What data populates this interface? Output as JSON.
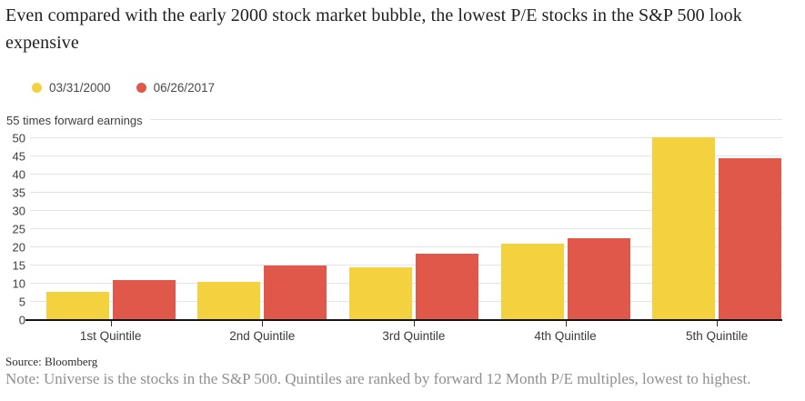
{
  "title": "Even compared with the early 2000 stock market bubble, the lowest P/E stocks in the S&P 500 look expensive",
  "legend": [
    {
      "label": "03/31/2000",
      "color": "#F4D13F"
    },
    {
      "label": "06/26/2017",
      "color": "#E0584A"
    }
  ],
  "axis_unit_label": "55 times forward earnings",
  "source": "Source: Bloomberg",
  "note": "Note: Universe is the stocks in the S&P 500. Quintiles are ranked by forward 12 Month P/E multiples, lowest to highest.",
  "chart_data": {
    "type": "bar",
    "title": "Even compared with the early 2000 stock market bubble, the lowest P/E stocks in the S&P 500 look expensive",
    "categories": [
      "1st Quintile",
      "2nd Quintile",
      "3rd Quintile",
      "4th Quintile",
      "5th Quintile"
    ],
    "series": [
      {
        "name": "03/31/2000",
        "color": "#F4D13F",
        "values": [
          7.7,
          10.6,
          14.5,
          20.9,
          50.2
        ]
      },
      {
        "name": "06/26/2017",
        "color": "#E0584A",
        "values": [
          11.0,
          14.9,
          18.2,
          22.5,
          44.5
        ]
      }
    ],
    "xlabel": "",
    "ylabel": "times forward earnings",
    "ylim": [
      0,
      55
    ],
    "yticks": [
      0,
      5,
      10,
      15,
      20,
      25,
      30,
      35,
      40,
      45,
      50
    ],
    "ytop_label": "55 times forward earnings",
    "grid": true,
    "legend_position": "top-left",
    "gridline_color": "#e4e4e4",
    "axis_color": "#141414"
  }
}
